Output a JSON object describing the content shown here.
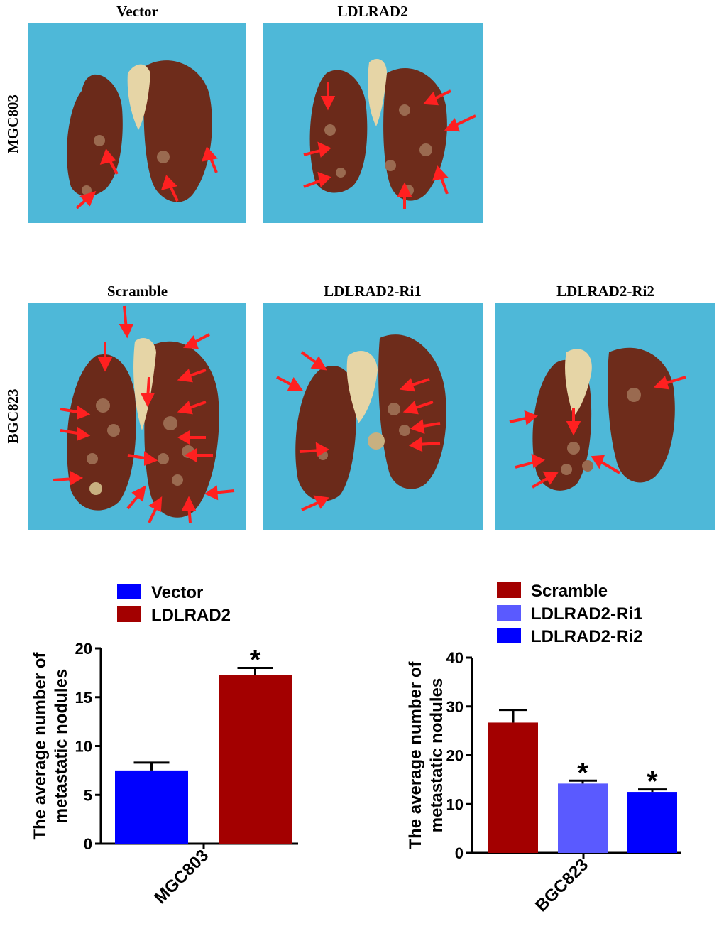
{
  "figure": {
    "row_labels": [
      "MGC803",
      "BGC823"
    ],
    "top_panels": [
      "Vector",
      "LDLRAD2"
    ],
    "bottom_panels": [
      "Scramble",
      "LDLRAD2-Ri1",
      "LDLRAD2-Ri2"
    ]
  },
  "colors": {
    "background_photo": "#4eb8d8",
    "lung": "#6b2a1a",
    "arrow": "#ff2020",
    "vector": "#0000ff",
    "ldlrad2": "#a30000",
    "scramble": "#a30000",
    "ri1": "#5a5aff",
    "ri2": "#0000ff"
  },
  "chart_data": [
    {
      "type": "bar",
      "ylabel": "The average number of metastatic nodules",
      "categories": [
        "MGC803"
      ],
      "ylim": [
        0,
        20
      ],
      "yticks": [
        0,
        5,
        10,
        15,
        20
      ],
      "legend_position": "top-left",
      "series": [
        {
          "name": "Vector",
          "value": 7.5,
          "error": 0.8,
          "color": "#0000ff",
          "annotation": ""
        },
        {
          "name": "LDLRAD2",
          "value": 17.3,
          "error": 0.7,
          "color": "#a30000",
          "annotation": "*"
        }
      ]
    },
    {
      "type": "bar",
      "ylabel": "The average number of metastatic nodules",
      "categories": [
        "BGC823"
      ],
      "ylim": [
        0,
        40
      ],
      "yticks": [
        0,
        10,
        20,
        30,
        40
      ],
      "legend_position": "top-left",
      "series": [
        {
          "name": "Scramble",
          "value": 26.7,
          "error": 2.6,
          "color": "#a30000",
          "annotation": ""
        },
        {
          "name": "LDLRAD2-Ri1",
          "value": 14.2,
          "error": 0.6,
          "color": "#5a5aff",
          "annotation": "*"
        },
        {
          "name": "LDLRAD2-Ri2",
          "value": 12.5,
          "error": 0.5,
          "color": "#0000ff",
          "annotation": "*"
        }
      ]
    }
  ]
}
